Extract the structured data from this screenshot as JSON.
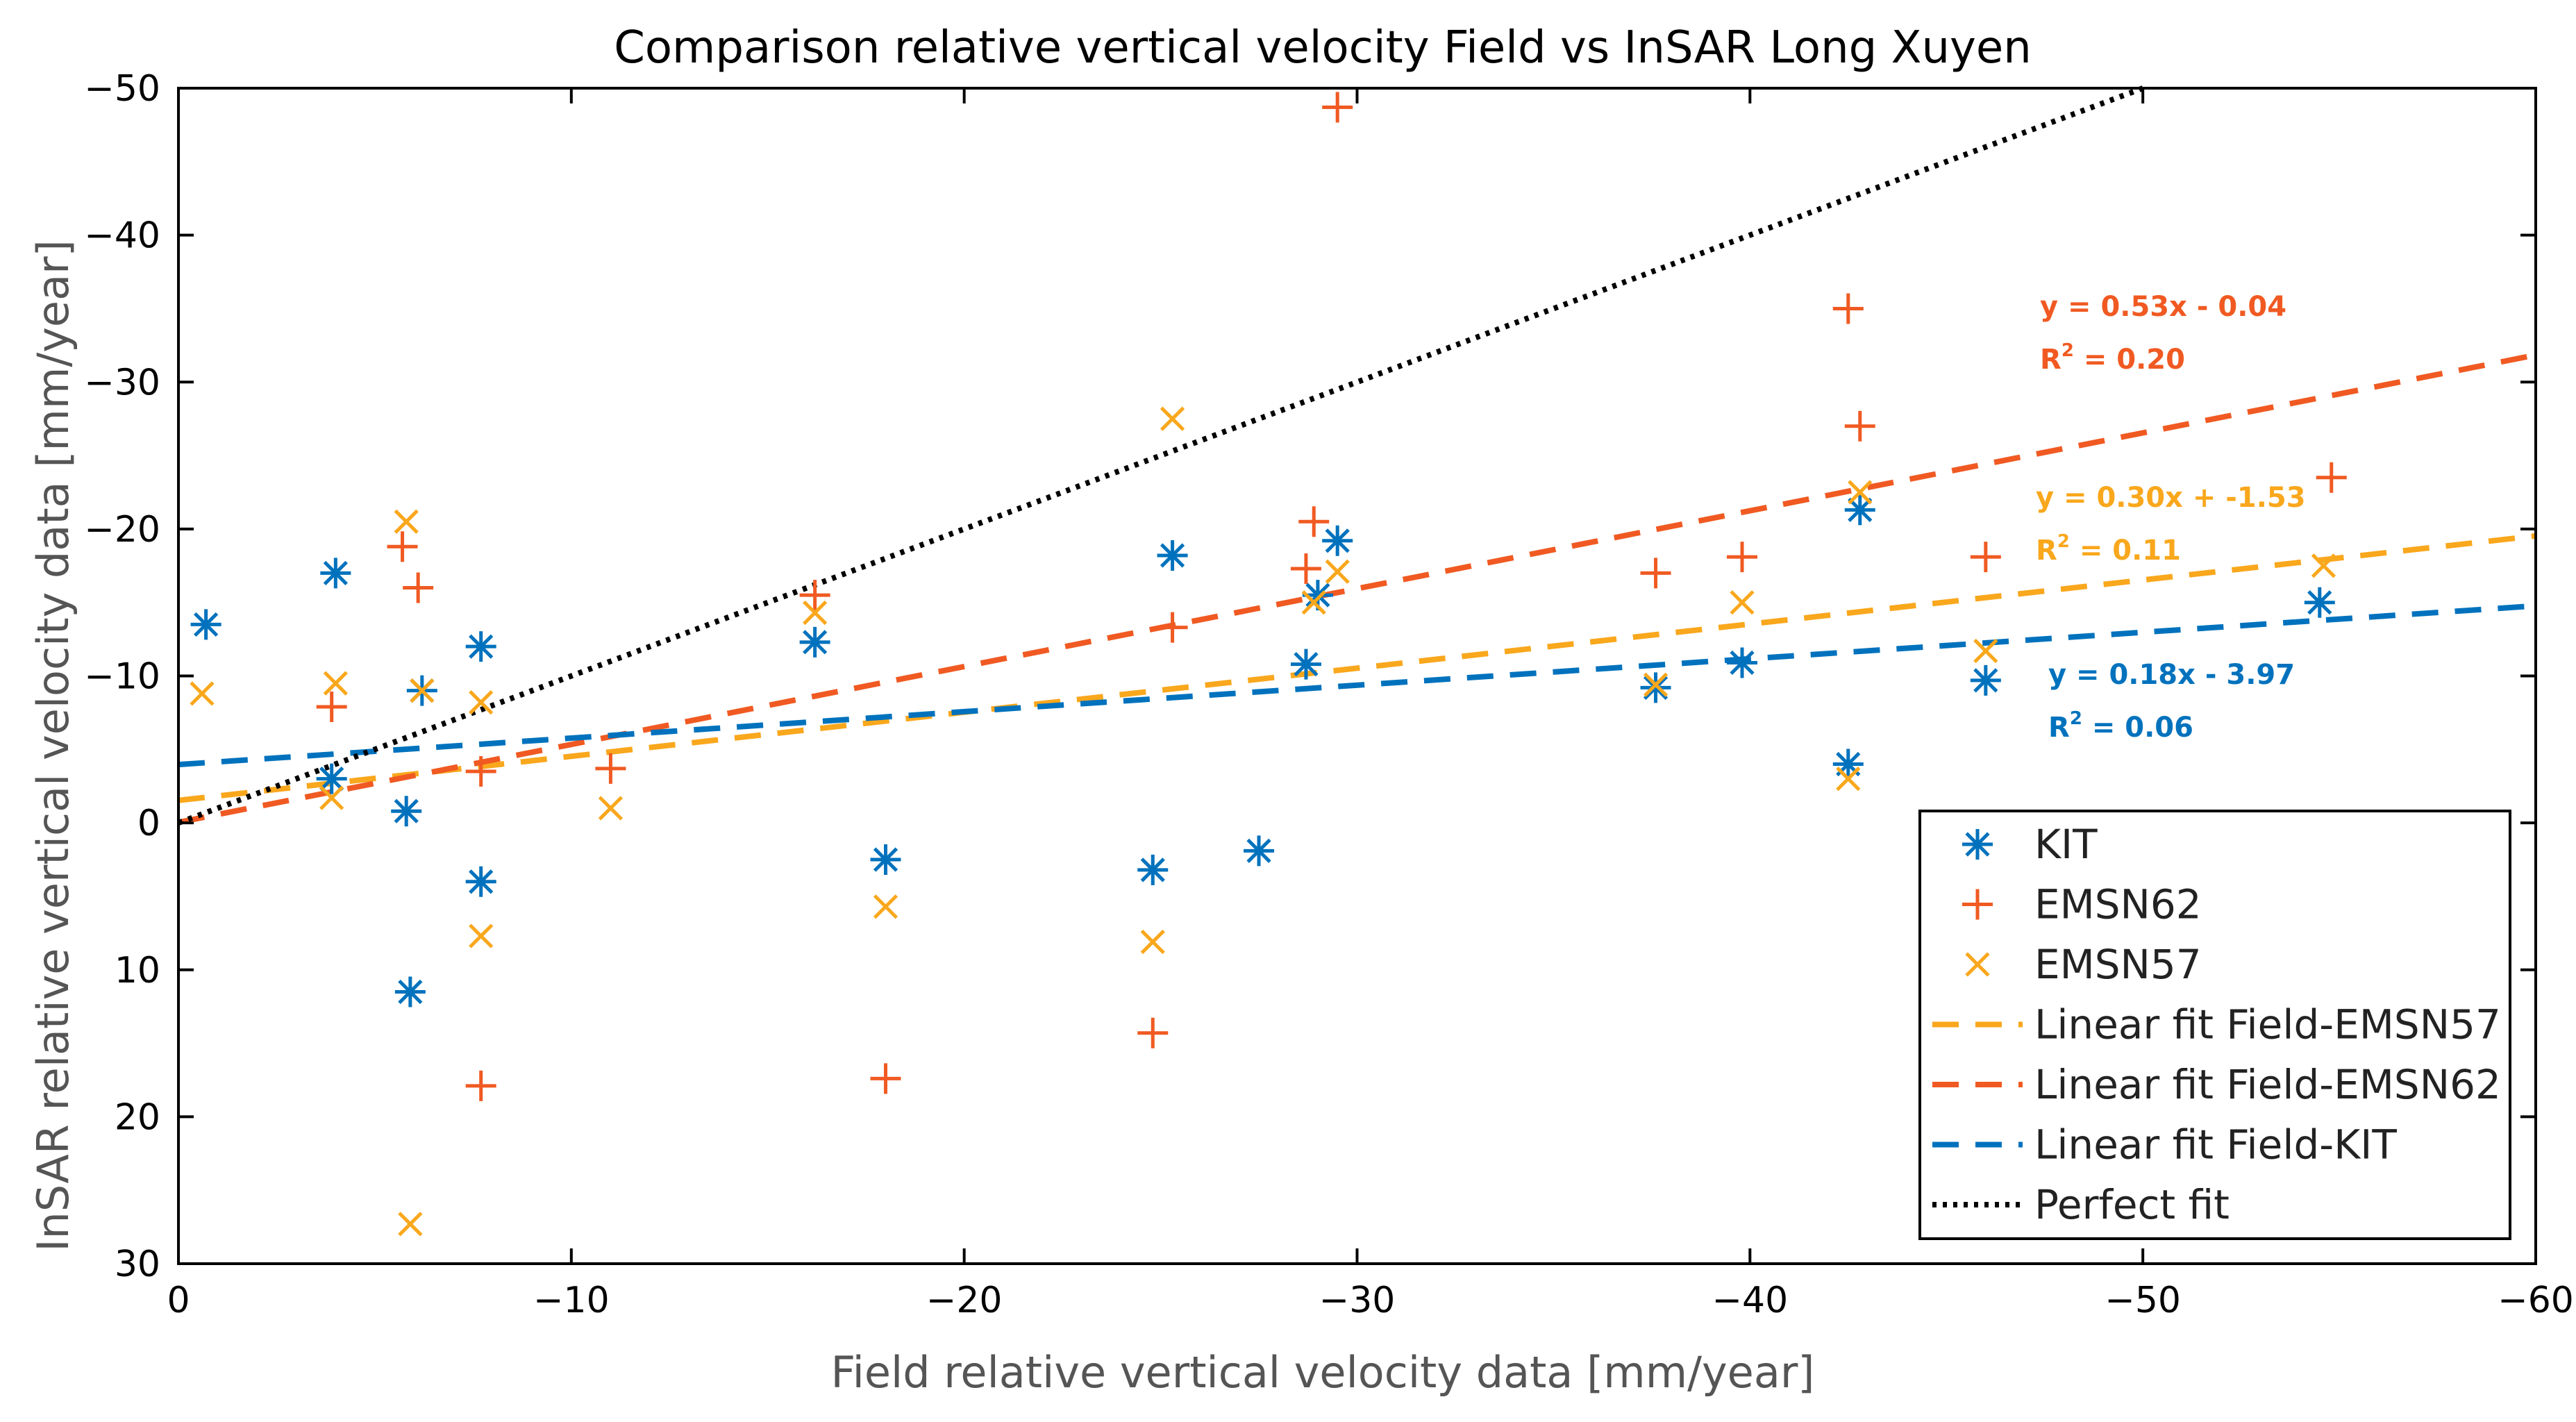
{
  "chart_data": {
    "type": "scatter",
    "title": "Comparison relative vertical velocity Field vs InSAR Long Xuyen",
    "xlabel": "Field relative vertical velocity data [mm/year]",
    "ylabel": "InSAR relative vertical velocity data [mm/year]",
    "xlim": [
      0,
      -60
    ],
    "ylim": [
      30,
      -50
    ],
    "xticks": [
      0,
      -10,
      -20,
      -30,
      -40,
      -50,
      -60
    ],
    "xtick_labels": [
      "0",
      "−10",
      "−20",
      "−30",
      "−40",
      "−50",
      "−60"
    ],
    "yticks": [
      -50,
      -40,
      -30,
      -20,
      -10,
      0,
      10,
      20,
      30
    ],
    "ytick_labels": [
      "−50",
      "−40",
      "−30",
      "−20",
      "−10",
      "0",
      "10",
      "20",
      "30"
    ],
    "legend_position": "bottom-right",
    "series": [
      {
        "name": "KIT",
        "marker": "asterisk",
        "color": "#0072BD",
        "x": [
          -0.7,
          -4.0,
          -3.9,
          -5.8,
          -5.9,
          -6.2,
          -7.7,
          -7.7,
          -16.2,
          -18.0,
          -24.8,
          -25.3,
          -27.5,
          -28.7,
          -29.0,
          -29.5,
          -37.6,
          -39.8,
          -42.5,
          -42.8,
          -46.0,
          -54.5
        ],
        "y": [
          -13.5,
          -17.0,
          -3.0,
          -0.8,
          11.5,
          -9.0,
          -12.0,
          4.0,
          -12.3,
          2.5,
          3.2,
          -18.2,
          1.9,
          -10.8,
          -15.5,
          -19.2,
          -9.2,
          -10.9,
          -4.0,
          -21.3,
          -9.7,
          -15.0
        ]
      },
      {
        "name": "EMSN62",
        "marker": "plus",
        "color": "#F05A22",
        "x": [
          -3.9,
          -5.7,
          -6.1,
          -7.7,
          -7.7,
          -11.0,
          -16.2,
          -18.0,
          -24.8,
          -25.3,
          -28.7,
          -28.9,
          -29.5,
          -37.6,
          -39.8,
          -42.5,
          -42.8,
          -46.0,
          -54.8
        ],
        "y": [
          -7.9,
          -18.8,
          -16.0,
          -3.5,
          17.9,
          -3.7,
          -15.5,
          17.4,
          14.3,
          -13.3,
          -17.3,
          -20.5,
          -48.7,
          -17.0,
          -18.1,
          -35.0,
          -27.0,
          -18.1,
          -23.5
        ]
      },
      {
        "name": "EMSN57",
        "marker": "x",
        "color": "#F9A71C",
        "x": [
          -0.6,
          -3.9,
          -4.0,
          -5.8,
          -5.9,
          -6.2,
          -7.7,
          -7.7,
          -11.0,
          -16.2,
          -18.0,
          -24.8,
          -25.3,
          -28.9,
          -29.5,
          -37.6,
          -39.8,
          -42.5,
          -42.8,
          -46.0,
          -54.6
        ],
        "y": [
          -8.8,
          -1.7,
          -9.5,
          -20.5,
          27.3,
          -9.0,
          -8.2,
          7.7,
          -1.0,
          -14.3,
          5.7,
          8.1,
          -27.5,
          -15.0,
          -17.1,
          -9.4,
          -15.0,
          -3.0,
          -22.5,
          -11.7,
          -17.5
        ]
      }
    ],
    "fits": [
      {
        "name": "Linear fit Field-EMSN57",
        "color": "#F9A71C",
        "style": "dashed",
        "slope": 0.3,
        "intercept": -1.53,
        "equation": "y = 0.30x + -1.53",
        "r2_label": "R",
        "r2_value": " = 0.11"
      },
      {
        "name": "Linear fit Field-EMSN62",
        "color": "#F05A22",
        "style": "dashed",
        "slope": 0.53,
        "intercept": -0.04,
        "equation": "y = 0.53x - 0.04",
        "r2_label": "R",
        "r2_value": " = 0.20"
      },
      {
        "name": "Linear fit Field-KIT",
        "color": "#0072BD",
        "style": "dashed",
        "slope": 0.18,
        "intercept": -3.97,
        "equation": "y = 0.18x - 3.97",
        "r2_label": "R",
        "r2_value": " = 0.06"
      },
      {
        "name": "Perfect fit",
        "color": "#000000",
        "style": "dotted",
        "slope": 1.0,
        "intercept": 0.0
      }
    ],
    "legend": [
      "KIT",
      "EMSN62",
      "EMSN57",
      "Linear fit Field-EMSN57",
      "Linear fit Field-EMSN62",
      "Linear fit Field-KIT",
      "Perfect fit"
    ]
  }
}
